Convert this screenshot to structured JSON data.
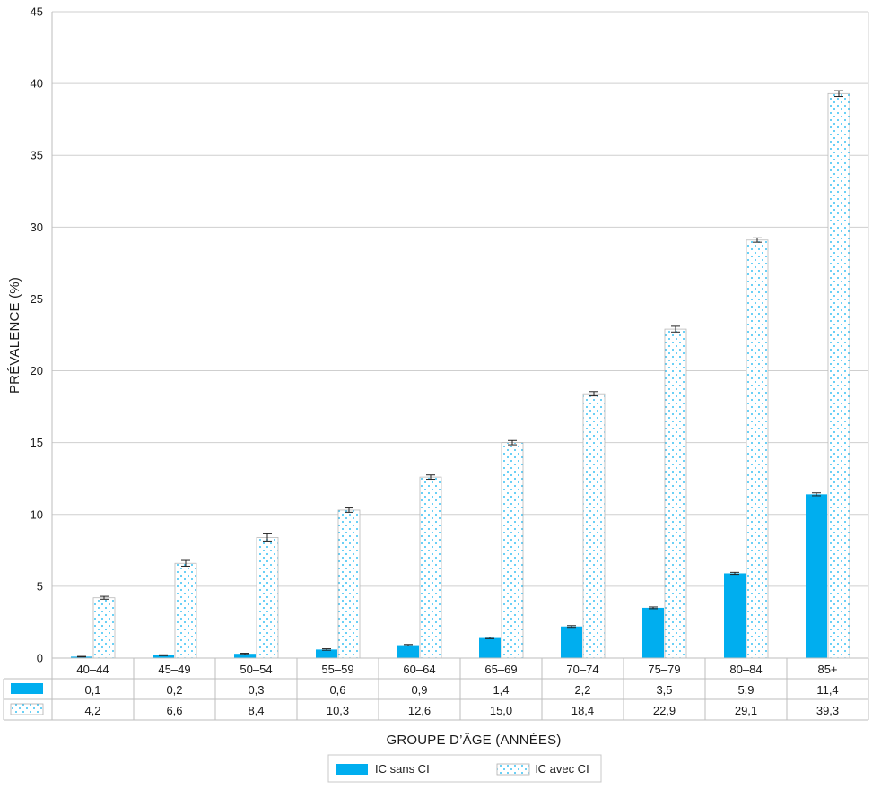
{
  "chart_data": {
    "type": "bar",
    "ylabel": "PRÉVALENCE (%)",
    "xlabel": "GROUPE D’ÂGE (ANNÉES)",
    "ylim": [
      0,
      45
    ],
    "yticks": [
      0,
      5,
      10,
      15,
      20,
      25,
      30,
      35,
      40,
      45
    ],
    "grid": true,
    "legend_position": "bottom",
    "categories": [
      "40–44",
      "45–49",
      "50–54",
      "55–59",
      "60–64",
      "65–69",
      "70–74",
      "75–79",
      "80–84",
      "85+"
    ],
    "series": [
      {
        "name": "IC sans CI",
        "style": "solid",
        "color": "#00aeef",
        "values": [
          0.1,
          0.2,
          0.3,
          0.6,
          0.9,
          1.4,
          2.2,
          3.5,
          5.9,
          11.4
        ],
        "labels": [
          "0,1",
          "0,2",
          "0,3",
          "0,6",
          "0,9",
          "1,4",
          "2,2",
          "3,5",
          "5,9",
          "11,4"
        ],
        "error": [
          0.02,
          0.03,
          0.04,
          0.05,
          0.05,
          0.05,
          0.06,
          0.06,
          0.07,
          0.1
        ]
      },
      {
        "name": "IC avec CI",
        "style": "dotted",
        "color": "#00aeef",
        "values": [
          4.2,
          6.6,
          8.4,
          10.3,
          12.6,
          15.0,
          18.4,
          22.9,
          29.1,
          39.3
        ],
        "labels": [
          "4,2",
          "6,6",
          "8,4",
          "10,3",
          "12,6",
          "15,0",
          "18,4",
          "22,9",
          "29,1",
          "39,3"
        ],
        "error": [
          0.1,
          0.2,
          0.25,
          0.15,
          0.15,
          0.15,
          0.15,
          0.2,
          0.15,
          0.2
        ]
      }
    ]
  }
}
